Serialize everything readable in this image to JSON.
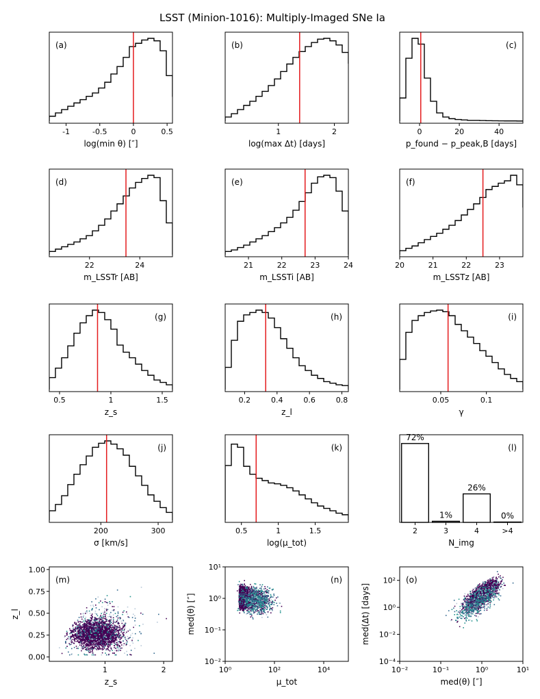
{
  "title": "LSST (Minion-1016): Multiply-Imaged SNe Ia",
  "colors": {
    "hist": "#000000",
    "median_line": "#e41a1c",
    "scatter_dark": "#440154",
    "scatter_mid": "#31688e",
    "scatter_teal": "#21918c"
  },
  "chart_data": [
    {
      "panel": "(a)",
      "type": "histogram",
      "xlabel": "log(min θ) [″]",
      "xlim": [
        -1.25,
        0.58
      ],
      "xticks": [
        -1.0,
        -0.5,
        0.0,
        0.5
      ],
      "bins_start": -1.25,
      "bin_width": 0.0915,
      "values": [
        0.06,
        0.1,
        0.14,
        0.18,
        0.22,
        0.26,
        0.3,
        0.34,
        0.4,
        0.47,
        0.57,
        0.66,
        0.77,
        0.9,
        0.94,
        0.98,
        1.0,
        0.97,
        0.85,
        0.55,
        0.3
      ],
      "median": 0.0,
      "label_pos": "top-left"
    },
    {
      "panel": "(b)",
      "type": "histogram",
      "xlabel": "log(max Δt) [days]",
      "xlim": [
        0.05,
        2.25
      ],
      "xticks": [
        1,
        2
      ],
      "bins_start": 0.05,
      "bin_width": 0.11,
      "values": [
        0.05,
        0.09,
        0.14,
        0.19,
        0.24,
        0.3,
        0.36,
        0.43,
        0.51,
        0.6,
        0.69,
        0.77,
        0.84,
        0.9,
        0.95,
        0.99,
        1.0,
        0.97,
        0.92,
        0.83,
        0.7
      ],
      "median": 1.38,
      "label_pos": "top-left"
    },
    {
      "panel": "(c)",
      "type": "histogram",
      "xlabel": "p_found − p_peak,B [days]",
      "xlim": [
        -10,
        52
      ],
      "xticks": [
        0,
        20,
        40
      ],
      "bins_start": -10,
      "bin_width": 3.1,
      "values": [
        0.28,
        0.76,
        1.0,
        0.93,
        0.52,
        0.24,
        0.1,
        0.05,
        0.03,
        0.02,
        0.015,
        0.01,
        0.01,
        0.008,
        0.006,
        0.005,
        0.004,
        0.003,
        0.003,
        0.002
      ],
      "median": 0.6,
      "label_pos": "top-right"
    },
    {
      "panel": "(d)",
      "type": "histogram",
      "xlabel": "m_LSSTr [AB]",
      "xlim": [
        20.4,
        25.3
      ],
      "xticks": [
        22,
        24
      ],
      "bins_start": 20.4,
      "bin_width": 0.245,
      "values": [
        0.04,
        0.07,
        0.1,
        0.13,
        0.16,
        0.2,
        0.24,
        0.3,
        0.37,
        0.45,
        0.55,
        0.64,
        0.74,
        0.84,
        0.91,
        0.96,
        1.0,
        0.97,
        0.68,
        0.4
      ],
      "median": 23.45,
      "label_pos": "top-left"
    },
    {
      "panel": "(e)",
      "type": "histogram",
      "xlabel": "m_LSSTi [AB]",
      "xlim": [
        20.3,
        24.0
      ],
      "xticks": [
        21,
        22,
        23,
        24
      ],
      "bins_start": 20.3,
      "bin_width": 0.185,
      "values": [
        0.04,
        0.06,
        0.09,
        0.12,
        0.16,
        0.2,
        0.24,
        0.29,
        0.34,
        0.4,
        0.47,
        0.56,
        0.67,
        0.78,
        0.9,
        0.98,
        1.0,
        0.97,
        0.8,
        0.55
      ],
      "median": 22.7,
      "label_pos": "top-left"
    },
    {
      "panel": "(f)",
      "type": "histogram",
      "xlabel": "m_LSSTz [AB]",
      "xlim": [
        20.0,
        23.7
      ],
      "xticks": [
        20,
        21,
        22,
        23
      ],
      "bins_start": 20.0,
      "bin_width": 0.185,
      "values": [
        0.05,
        0.08,
        0.11,
        0.15,
        0.19,
        0.23,
        0.27,
        0.32,
        0.37,
        0.43,
        0.5,
        0.57,
        0.64,
        0.72,
        0.82,
        0.86,
        0.9,
        0.93,
        1.0,
        0.88,
        0.6,
        0.3
      ],
      "median": 22.5,
      "label_pos": "top-left"
    },
    {
      "panel": "(g)",
      "type": "histogram",
      "xlabel": "z_s",
      "xlim": [
        0.4,
        1.6
      ],
      "xticks": [
        0.5,
        1.0,
        1.5
      ],
      "bins_start": 0.4,
      "bin_width": 0.06,
      "values": [
        0.15,
        0.27,
        0.4,
        0.55,
        0.71,
        0.84,
        0.93,
        1.0,
        0.97,
        0.88,
        0.76,
        0.56,
        0.47,
        0.4,
        0.32,
        0.24,
        0.18,
        0.12,
        0.09,
        0.06
      ],
      "median": 0.87,
      "label_pos": "top-right"
    },
    {
      "panel": "(h)",
      "type": "histogram",
      "xlabel": "z_l",
      "xlim": [
        0.08,
        0.84
      ],
      "xticks": [
        0.2,
        0.4,
        0.6,
        0.8
      ],
      "bins_start": 0.08,
      "bin_width": 0.038,
      "values": [
        0.28,
        0.62,
        0.86,
        0.94,
        0.97,
        1.0,
        0.97,
        0.9,
        0.78,
        0.64,
        0.52,
        0.4,
        0.3,
        0.24,
        0.18,
        0.14,
        0.1,
        0.08,
        0.06,
        0.05
      ],
      "median": 0.33,
      "label_pos": "top-right"
    },
    {
      "panel": "(i)",
      "type": "histogram",
      "xlabel": "γ",
      "xlim": [
        0.005,
        0.14
      ],
      "xticks": [
        0.05,
        0.1
      ],
      "bins_start": 0.005,
      "bin_width": 0.00675,
      "values": [
        0.38,
        0.72,
        0.87,
        0.93,
        0.97,
        0.99,
        1.0,
        0.98,
        0.93,
        0.82,
        0.74,
        0.66,
        0.58,
        0.49,
        0.42,
        0.34,
        0.26,
        0.19,
        0.14,
        0.1
      ],
      "median": 0.058,
      "label_pos": "top-right"
    },
    {
      "panel": "(j)",
      "type": "histogram",
      "xlabel": "σ [km/s]",
      "xlim": [
        110,
        325
      ],
      "xticks": [
        200,
        300
      ],
      "bins_start": 110,
      "bin_width": 10.75,
      "values": [
        0.12,
        0.2,
        0.31,
        0.45,
        0.58,
        0.7,
        0.81,
        0.92,
        0.97,
        1.0,
        0.96,
        0.9,
        0.82,
        0.68,
        0.56,
        0.44,
        0.32,
        0.24,
        0.16,
        0.1
      ],
      "median": 210,
      "label_pos": "top-right"
    },
    {
      "panel": "(k)",
      "type": "histogram",
      "xlabel": "log(μ_tot)",
      "xlim": [
        0.28,
        1.95
      ],
      "xticks": [
        0.5,
        1.0,
        1.5
      ],
      "bins_start": 0.28,
      "bin_width": 0.0835,
      "values": [
        0.69,
        0.96,
        0.92,
        0.68,
        0.58,
        0.53,
        0.5,
        0.47,
        0.46,
        0.44,
        0.41,
        0.37,
        0.32,
        0.27,
        0.22,
        0.18,
        0.15,
        0.12,
        0.09,
        0.07
      ],
      "median": 0.7,
      "label_pos": "top-right"
    },
    {
      "panel": "(l)",
      "type": "bar",
      "xlabel": "N_img",
      "categories": [
        "2",
        "3",
        "4",
        ">4"
      ],
      "values": [
        72,
        1,
        26,
        0
      ],
      "data_labels": [
        "72%",
        "1%",
        "26%",
        "0%"
      ],
      "label_pos": "top-right"
    },
    {
      "panel": "(m)",
      "type": "scatter",
      "xlabel": "z_s",
      "ylabel": "z_l",
      "xlim": [
        0.05,
        2.15
      ],
      "ylim": [
        -0.05,
        1.03
      ],
      "xticks": [
        1,
        2
      ],
      "yticks": [
        0.0,
        0.25,
        0.5,
        0.75,
        1.0
      ],
      "yticklabels": [
        "0.00",
        "0.25",
        "0.50",
        "0.75",
        "1.00"
      ],
      "label_pos": "top-left"
    },
    {
      "panel": "(n)",
      "type": "scatter",
      "xlabel": "μ_tot",
      "ylabel": "med(θ) [″]",
      "xscale": "log",
      "yscale": "log",
      "xlim_log10": [
        0,
        5
      ],
      "ylim_log10": [
        -2,
        1
      ],
      "xticklabels": [
        "10⁰",
        "10²",
        "10⁴"
      ],
      "yticklabels": [
        "10⁻²",
        "10⁻¹",
        "10⁰",
        "10¹"
      ],
      "label_pos": "top-right"
    },
    {
      "panel": "(o)",
      "type": "scatter",
      "xlabel": "med(θ) [″]",
      "ylabel": "med(Δt) [days]",
      "xscale": "log",
      "yscale": "log",
      "xlim_log10": [
        -2,
        1
      ],
      "ylim_log10": [
        -4,
        3
      ],
      "xticklabels": [
        "10⁻²",
        "10⁻¹",
        "10⁰",
        "10¹"
      ],
      "yticklabels": [
        "10⁻⁴",
        "10⁻²",
        "10⁰",
        "10²"
      ],
      "label_pos": "top-left"
    }
  ]
}
